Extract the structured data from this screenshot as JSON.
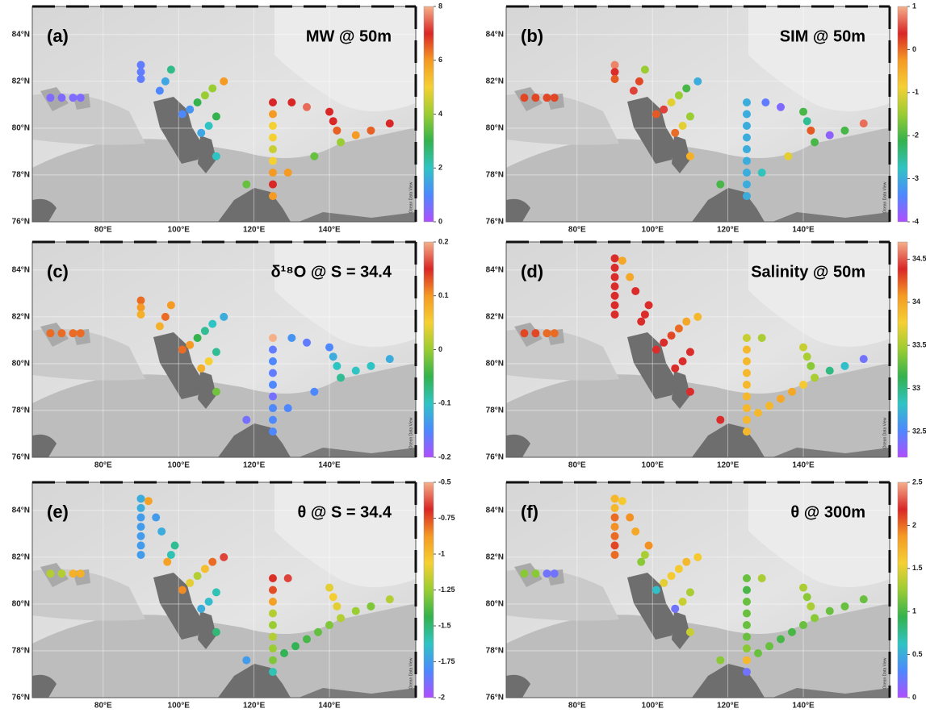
{
  "xlim": [
    61.2,
    162.9
  ],
  "ylim": [
    76,
    85.2
  ],
  "xticks": [
    {
      "value": 80,
      "label": "80°E"
    },
    {
      "value": 100,
      "label": "100°E"
    },
    {
      "value": 120,
      "label": "120°E"
    },
    {
      "value": 140,
      "label": "140°E"
    }
  ],
  "yticks": [
    {
      "value": 76,
      "label": "76°N"
    },
    {
      "value": 78,
      "label": "78°N"
    },
    {
      "value": 80,
      "label": "80°N"
    },
    {
      "value": 82,
      "label": "82°N"
    },
    {
      "value": 84,
      "label": "84°N"
    }
  ],
  "colormap": [
    "#b04dff",
    "#4d88ff",
    "#2fc4c4",
    "#33b24d",
    "#9acd32",
    "#f5d033",
    "#f59a23",
    "#d92626",
    "#f5b08a"
  ],
  "watermark": "Ocean Data View",
  "panels": [
    {
      "label": "(a)",
      "title": "MW @ 50m",
      "clim": [
        0,
        8
      ],
      "cticks": [
        0,
        2,
        4,
        6,
        8
      ],
      "lon": [
        66,
        69,
        72,
        74,
        90,
        90,
        90,
        95,
        96.5,
        98,
        101,
        103,
        105,
        107,
        109,
        112,
        106,
        108,
        110,
        110,
        125,
        125,
        125,
        125,
        125,
        125,
        125,
        125,
        125,
        118,
        129,
        136,
        130,
        134,
        140,
        141,
        142,
        143,
        147,
        151,
        156
      ],
      "lat": [
        81.3,
        81.3,
        81.3,
        81.3,
        82.7,
        82.4,
        82.1,
        81.6,
        82.0,
        82.5,
        80.6,
        80.8,
        81.1,
        81.4,
        81.7,
        82.0,
        79.8,
        80.1,
        80.5,
        78.8,
        77.1,
        77.6,
        78.1,
        78.6,
        79.1,
        79.6,
        80.1,
        80.6,
        81.1,
        77.6,
        78.1,
        78.8,
        81.1,
        80.9,
        80.7,
        80.3,
        79.9,
        79.4,
        79.7,
        79.9,
        80.2
      ],
      "values": [
        0.5,
        0.5,
        0.5,
        0.5,
        0.8,
        0.8,
        0.8,
        1,
        1.5,
        2.5,
        1,
        1.2,
        3,
        4,
        4,
        6,
        1.5,
        2,
        3,
        2,
        6,
        7,
        6,
        5,
        4.5,
        5,
        5,
        6,
        7,
        3.5,
        6,
        3.5,
        7,
        7.5,
        7,
        7,
        6.5,
        4,
        6,
        6.5,
        7
      ]
    },
    {
      "label": "(b)",
      "title": "SIM @ 50m",
      "clim": [
        -4,
        1
      ],
      "cticks": [
        -4,
        -3,
        -2,
        -1,
        0,
        1
      ],
      "lon": [
        66,
        69,
        72,
        74,
        90,
        90,
        90,
        95,
        96.5,
        98,
        101,
        103,
        105,
        107,
        109,
        112,
        106,
        108,
        110,
        110,
        125,
        125,
        125,
        125,
        125,
        125,
        125,
        125,
        125,
        118,
        129,
        136,
        130,
        134,
        140,
        141,
        142,
        143,
        147,
        151,
        156
      ],
      "lat": [
        81.3,
        81.3,
        81.3,
        81.3,
        82.7,
        82.4,
        82.1,
        81.6,
        82.0,
        82.5,
        80.6,
        80.8,
        81.1,
        81.4,
        81.7,
        82.0,
        79.8,
        80.1,
        80.5,
        78.8,
        77.1,
        77.6,
        78.1,
        78.6,
        79.1,
        79.6,
        80.1,
        80.6,
        81.1,
        77.6,
        78.1,
        78.8,
        81.1,
        80.9,
        80.7,
        80.3,
        79.9,
        79.4,
        79.7,
        79.9,
        80.2
      ],
      "values": [
        0.2,
        0.2,
        0.2,
        0.2,
        0.8,
        0.4,
        0.1,
        0.5,
        0.2,
        -1.5,
        0.1,
        0.5,
        -1,
        -1.5,
        -2,
        -3,
        0,
        -1,
        -1.5,
        -0.5,
        -3,
        -3,
        -3,
        -3,
        -3,
        -3,
        -3,
        -3,
        -3,
        -2,
        -2.7,
        -1,
        -3.5,
        -3.7,
        -2,
        -2.5,
        0.1,
        -2,
        -3.8,
        -2,
        0.7
      ]
    },
    {
      "label": "(c)",
      "title": "δ¹⁸O @ S = 34.4",
      "clim": [
        -0.2,
        0.2
      ],
      "cticks": [
        -0.2,
        -0.1,
        0,
        0.1,
        0.2
      ],
      "lon": [
        66,
        69,
        72,
        74,
        90,
        90,
        90,
        95,
        96.5,
        98,
        101,
        103,
        105,
        107,
        109,
        112,
        106,
        108,
        110,
        110,
        125,
        125,
        125,
        125,
        125,
        125,
        125,
        125,
        125,
        118,
        129,
        136,
        130,
        134,
        140,
        141,
        142,
        143,
        147,
        151,
        156
      ],
      "lat": [
        81.3,
        81.3,
        81.3,
        81.3,
        82.7,
        82.4,
        82.1,
        81.6,
        82.0,
        82.5,
        80.6,
        80.8,
        81.1,
        81.4,
        81.7,
        82.0,
        79.8,
        80.1,
        80.5,
        78.8,
        77.1,
        77.6,
        78.1,
        78.6,
        79.1,
        79.6,
        80.1,
        80.6,
        81.1,
        77.6,
        78.1,
        78.8,
        81.1,
        80.9,
        80.7,
        80.3,
        79.9,
        79.4,
        79.7,
        79.9,
        80.2
      ],
      "values": [
        0.12,
        0.12,
        0.12,
        0.12,
        0.12,
        0.1,
        0.08,
        0.08,
        0.12,
        0.1,
        0.12,
        0.1,
        -0.05,
        -0.08,
        -0.1,
        -0.12,
        0.08,
        0.05,
        -0.08,
        -0.02,
        -0.15,
        -0.15,
        -0.15,
        -0.17,
        -0.15,
        -0.16,
        -0.15,
        -0.16,
        0.2,
        -0.17,
        -0.15,
        -0.15,
        -0.14,
        -0.16,
        -0.15,
        -0.12,
        -0.1,
        -0.08,
        -0.1,
        -0.1,
        -0.12
      ]
    },
    {
      "label": "(d)",
      "title": "Salinity @ 50m",
      "clim": [
        32.2,
        34.7
      ],
      "cticks": [
        32.5,
        33,
        33.5,
        34,
        34.5
      ],
      "lon": [
        66,
        69,
        72,
        74,
        90,
        90,
        90,
        90,
        90,
        90,
        90,
        92,
        94,
        95.5,
        97,
        98,
        99,
        101,
        103,
        105,
        107,
        109,
        112,
        106,
        108,
        110,
        110,
        125,
        125,
        125,
        125,
        125,
        125,
        125,
        125,
        125,
        118,
        129,
        128,
        131,
        134,
        137,
        140,
        140,
        141,
        142,
        143,
        147,
        151,
        156
      ],
      "lat": [
        81.3,
        81.3,
        81.3,
        81.3,
        82.1,
        82.5,
        82.9,
        83.3,
        83.7,
        84.1,
        84.5,
        84.4,
        83.7,
        83.1,
        81.8,
        82.1,
        82.5,
        80.6,
        80.9,
        81.2,
        81.5,
        81.8,
        82.0,
        79.8,
        80.1,
        80.5,
        78.8,
        77.1,
        77.6,
        78.1,
        78.6,
        79.1,
        79.6,
        80.1,
        80.6,
        81.1,
        77.6,
        81.1,
        77.9,
        78.2,
        78.5,
        78.8,
        79.1,
        80.7,
        80.3,
        79.9,
        79.4,
        79.7,
        79.9,
        80.2
      ],
      "values": [
        34.3,
        34.3,
        34.2,
        34.2,
        34.4,
        34.4,
        34.4,
        34.4,
        34.4,
        34.4,
        34.4,
        34.0,
        34.0,
        34.4,
        34.4,
        34.4,
        34.4,
        34.4,
        34.4,
        34.3,
        34.2,
        34.0,
        33.9,
        34.4,
        34.4,
        34.4,
        34.4,
        33.9,
        33.9,
        33.9,
        33.9,
        33.9,
        33.9,
        33.9,
        33.9,
        33.6,
        34.4,
        33.5,
        33.9,
        33.9,
        34.0,
        34.0,
        33.8,
        33.6,
        33.5,
        33.4,
        33.5,
        33.0,
        32.8,
        32.4
      ]
    },
    {
      "label": "(e)",
      "title": "θ @ S = 34.4",
      "clim": [
        -2,
        -0.5
      ],
      "cticks": [
        -2,
        -1.75,
        -1.5,
        -1.25,
        -1,
        -0.75,
        -0.5
      ],
      "lon": [
        66,
        69,
        72,
        74,
        90,
        90,
        90,
        90,
        90,
        90,
        90,
        92,
        94,
        95.5,
        97,
        98,
        99,
        101,
        103,
        105,
        107,
        109,
        112,
        106,
        108,
        110,
        110,
        125,
        125,
        125,
        125,
        125,
        125,
        125,
        125,
        125,
        118,
        129,
        128,
        131,
        134,
        137,
        140,
        140,
        141,
        142,
        143,
        147,
        151,
        156
      ],
      "lat": [
        81.3,
        81.3,
        81.3,
        81.3,
        82.1,
        82.5,
        82.9,
        83.3,
        83.7,
        84.1,
        84.5,
        84.4,
        83.7,
        83.1,
        81.8,
        82.1,
        82.5,
        80.6,
        80.9,
        81.2,
        81.5,
        81.8,
        82.0,
        79.8,
        80.1,
        80.5,
        78.8,
        77.1,
        77.6,
        78.1,
        78.6,
        79.1,
        79.6,
        80.1,
        80.6,
        81.1,
        77.6,
        81.1,
        77.9,
        78.2,
        78.5,
        78.8,
        79.1,
        80.7,
        80.3,
        79.9,
        79.4,
        79.7,
        79.9,
        80.2
      ],
      "values": [
        -1.2,
        -1.2,
        -0.95,
        -0.95,
        -1.75,
        -1.75,
        -1.75,
        -1.75,
        -1.75,
        -1.7,
        -1.7,
        -0.9,
        -1.75,
        -1.7,
        -0.9,
        -1.6,
        -1.55,
        -0.85,
        -1.1,
        -1.2,
        -1.0,
        -0.8,
        -0.65,
        -1.7,
        -1.65,
        -1.6,
        -1.5,
        -1.6,
        -1.3,
        -1.25,
        -1.2,
        -1.25,
        -1.2,
        -0.9,
        -0.75,
        -0.7,
        -1.75,
        -0.65,
        -1.45,
        -1.45,
        -1.4,
        -1.35,
        -1.3,
        -1.1,
        -1.05,
        -1.1,
        -1.2,
        -1.25,
        -1.3,
        -1.2
      ]
    },
    {
      "label": "(f)",
      "title": "θ @ 300m",
      "clim": [
        0,
        2.5
      ],
      "cticks": [
        0,
        0.5,
        1,
        1.5,
        2,
        2.5
      ],
      "lon": [
        66,
        69,
        72,
        74,
        90,
        90,
        90,
        90,
        90,
        90,
        90,
        92,
        94,
        95.5,
        97,
        98,
        99,
        101,
        103,
        105,
        107,
        109,
        112,
        106,
        108,
        110,
        110,
        125,
        125,
        125,
        125,
        125,
        125,
        125,
        125,
        125,
        118,
        129,
        128,
        131,
        134,
        137,
        140,
        140,
        141,
        142,
        143,
        147,
        151,
        156
      ],
      "lat": [
        81.3,
        81.3,
        81.3,
        81.3,
        82.1,
        82.5,
        82.9,
        83.3,
        83.7,
        84.1,
        84.5,
        84.4,
        83.7,
        83.1,
        81.8,
        82.1,
        82.5,
        80.6,
        80.9,
        81.2,
        81.5,
        81.8,
        82.0,
        79.8,
        80.1,
        80.5,
        78.8,
        77.1,
        77.6,
        78.1,
        78.6,
        79.1,
        79.6,
        80.1,
        80.6,
        81.1,
        77.6,
        81.1,
        77.9,
        78.2,
        78.5,
        78.8,
        79.1,
        80.7,
        80.3,
        79.9,
        79.4,
        79.7,
        79.9,
        80.2
      ],
      "values": [
        1.2,
        1.2,
        0.2,
        0.2,
        2.0,
        2.1,
        2.0,
        1.9,
        2.0,
        1.7,
        1.7,
        1.6,
        1.9,
        1.8,
        1.2,
        1.3,
        1.9,
        0.6,
        1.5,
        1.6,
        1.6,
        1.7,
        1.6,
        0.2,
        1.4,
        1.3,
        1.4,
        0.2,
        1.7,
        1.2,
        1.1,
        1.1,
        1.1,
        1.1,
        1.0,
        1.1,
        1.2,
        1.3,
        1.1,
        1.1,
        1.0,
        1.0,
        1.1,
        1.3,
        1.2,
        1.3,
        1.2,
        1.1,
        1.1,
        1.1
      ]
    }
  ]
}
